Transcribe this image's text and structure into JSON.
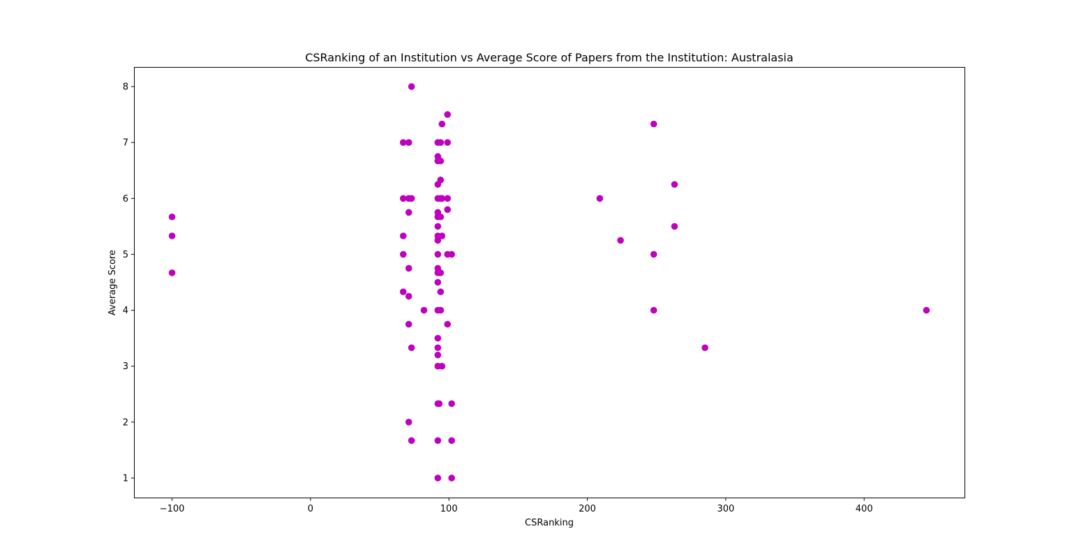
{
  "chart_data": {
    "type": "scatter",
    "title": "CSRanking of an Institution vs Average Score of Papers from the Institution: Australasia",
    "xlabel": "CSRanking",
    "ylabel": "Average Score",
    "xlim": [
      -127.5,
      472.5
    ],
    "ylim": [
      0.65,
      8.35
    ],
    "xticks": [
      -100,
      0,
      100,
      200,
      300,
      400
    ],
    "xtick_labels": [
      "−100",
      "0",
      "100",
      "200",
      "300",
      "400"
    ],
    "yticks": [
      1,
      2,
      3,
      4,
      5,
      6,
      7,
      8
    ],
    "ytick_labels": [
      "1",
      "2",
      "3",
      "4",
      "5",
      "6",
      "7",
      "8"
    ],
    "grid": false,
    "marker_color": "#bf00bf",
    "points": [
      {
        "x": -100,
        "y": 5.67
      },
      {
        "x": -100,
        "y": 5.33
      },
      {
        "x": -100,
        "y": 4.67
      },
      {
        "x": 67,
        "y": 7.0
      },
      {
        "x": 67,
        "y": 6.0
      },
      {
        "x": 67,
        "y": 5.33
      },
      {
        "x": 67,
        "y": 5.0
      },
      {
        "x": 67,
        "y": 4.33
      },
      {
        "x": 71,
        "y": 7.0
      },
      {
        "x": 71,
        "y": 6.0
      },
      {
        "x": 71,
        "y": 5.75
      },
      {
        "x": 71,
        "y": 4.75
      },
      {
        "x": 71,
        "y": 4.25
      },
      {
        "x": 71,
        "y": 3.75
      },
      {
        "x": 71,
        "y": 2.0
      },
      {
        "x": 73,
        "y": 8.0
      },
      {
        "x": 73,
        "y": 6.0
      },
      {
        "x": 73,
        "y": 3.33
      },
      {
        "x": 73,
        "y": 1.67
      },
      {
        "x": 82,
        "y": 4.0
      },
      {
        "x": 92,
        "y": 7.0
      },
      {
        "x": 92,
        "y": 6.75
      },
      {
        "x": 92,
        "y": 6.67
      },
      {
        "x": 92,
        "y": 6.25
      },
      {
        "x": 92,
        "y": 6.0
      },
      {
        "x": 92,
        "y": 5.75
      },
      {
        "x": 92,
        "y": 5.67
      },
      {
        "x": 92,
        "y": 5.5
      },
      {
        "x": 92,
        "y": 5.33
      },
      {
        "x": 92,
        "y": 5.25
      },
      {
        "x": 92,
        "y": 5.0
      },
      {
        "x": 92,
        "y": 4.75
      },
      {
        "x": 92,
        "y": 4.67
      },
      {
        "x": 92,
        "y": 4.5
      },
      {
        "x": 92,
        "y": 4.0
      },
      {
        "x": 92,
        "y": 3.5
      },
      {
        "x": 92,
        "y": 3.33
      },
      {
        "x": 92,
        "y": 3.2
      },
      {
        "x": 92,
        "y": 3.0
      },
      {
        "x": 92,
        "y": 2.33
      },
      {
        "x": 92,
        "y": 1.67
      },
      {
        "x": 92,
        "y": 1.0
      },
      {
        "x": 93,
        "y": 2.33
      },
      {
        "x": 94,
        "y": 7.0
      },
      {
        "x": 94,
        "y": 6.67
      },
      {
        "x": 94,
        "y": 6.33
      },
      {
        "x": 94,
        "y": 6.0
      },
      {
        "x": 94,
        "y": 5.67
      },
      {
        "x": 94,
        "y": 4.67
      },
      {
        "x": 94,
        "y": 4.33
      },
      {
        "x": 94,
        "y": 4.0
      },
      {
        "x": 95,
        "y": 7.33
      },
      {
        "x": 95,
        "y": 6.0
      },
      {
        "x": 95,
        "y": 5.33
      },
      {
        "x": 95,
        "y": 3.0
      },
      {
        "x": 99,
        "y": 7.5
      },
      {
        "x": 99,
        "y": 7.0
      },
      {
        "x": 99,
        "y": 6.0
      },
      {
        "x": 99,
        "y": 5.8
      },
      {
        "x": 99,
        "y": 5.0
      },
      {
        "x": 99,
        "y": 3.75
      },
      {
        "x": 102,
        "y": 5.0
      },
      {
        "x": 102,
        "y": 2.33
      },
      {
        "x": 102,
        "y": 1.67
      },
      {
        "x": 102,
        "y": 1.0
      },
      {
        "x": 209,
        "y": 6.0
      },
      {
        "x": 224,
        "y": 5.25
      },
      {
        "x": 248,
        "y": 7.33
      },
      {
        "x": 248,
        "y": 5.0
      },
      {
        "x": 248,
        "y": 4.0
      },
      {
        "x": 263,
        "y": 6.25
      },
      {
        "x": 263,
        "y": 5.5
      },
      {
        "x": 285,
        "y": 3.33
      },
      {
        "x": 445,
        "y": 4.0
      }
    ]
  }
}
